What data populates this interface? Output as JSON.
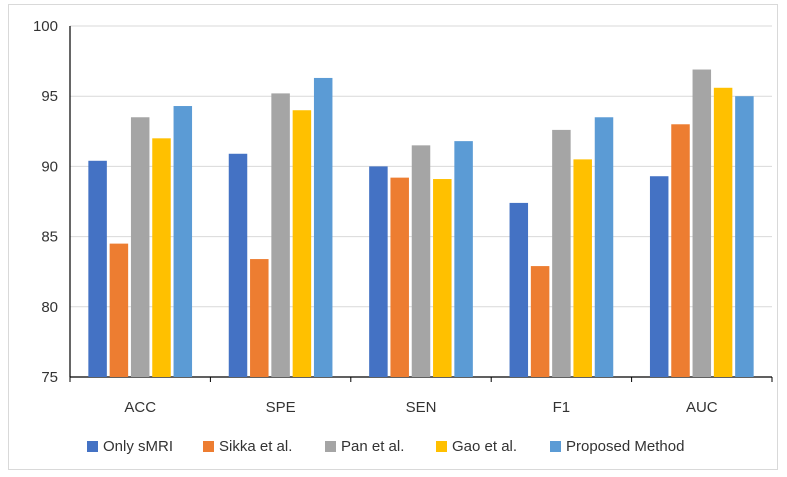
{
  "chart_data": {
    "type": "bar",
    "title": "",
    "xlabel": "",
    "ylabel": "",
    "categories": [
      "ACC",
      "SPE",
      "SEN",
      "F1",
      "AUC"
    ],
    "ylim": [
      75,
      100
    ],
    "yticks": [
      "75",
      "80",
      "85",
      "90",
      "95",
      "100"
    ],
    "grid": true,
    "legend_position": "bottom",
    "series": [
      {
        "name": "Only sMRI",
        "color": "#4472C4",
        "values": [
          90.4,
          90.9,
          90.0,
          87.4,
          89.3
        ]
      },
      {
        "name": "Sikka et al.",
        "color": "#ED7D31",
        "values": [
          84.5,
          83.4,
          89.2,
          82.9,
          93.0
        ]
      },
      {
        "name": "Pan et al.",
        "color": "#A5A5A5",
        "values": [
          93.5,
          95.2,
          91.5,
          92.6,
          96.9
        ]
      },
      {
        "name": "Gao et al.",
        "color": "#FFC000",
        "values": [
          92.0,
          94.0,
          89.1,
          90.5,
          95.6
        ]
      },
      {
        "name": "Proposed Method",
        "color": "#5B9BD5",
        "values": [
          94.3,
          96.3,
          91.8,
          93.5,
          95.0
        ]
      }
    ]
  }
}
